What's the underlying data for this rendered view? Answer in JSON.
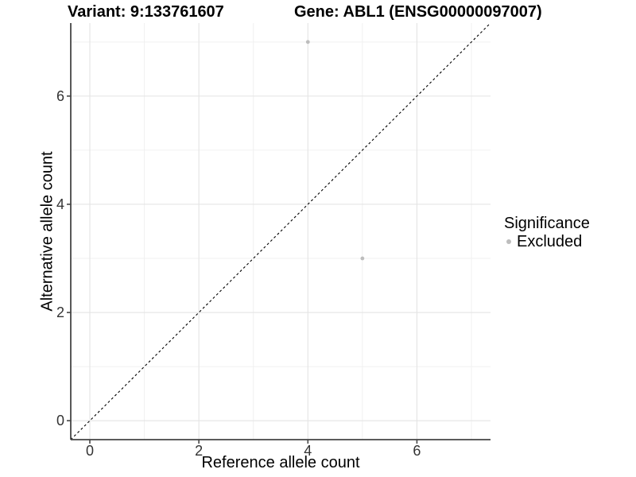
{
  "chart_data": {
    "type": "scatter",
    "title_left": "Variant: 9:133761607",
    "title_right": "Gene: ABL1 (ENSG00000097007)",
    "xlabel": "Reference allele count",
    "ylabel": "Alternative allele count",
    "xlim": [
      -0.35,
      7.35
    ],
    "ylim": [
      -0.35,
      7.35
    ],
    "x_major_ticks": [
      0,
      2,
      4,
      6
    ],
    "x_minor_ticks": [
      1,
      3,
      5,
      7
    ],
    "y_major_ticks": [
      0,
      2,
      4,
      6
    ],
    "y_minor_ticks": [
      1,
      3,
      5,
      7
    ],
    "grid": "major+minor",
    "legend_position": "right",
    "series": [
      {
        "name": "Excluded",
        "color": "#bdbdbd",
        "points": [
          {
            "x": 4,
            "y": 7
          },
          {
            "x": 5,
            "y": 3
          }
        ]
      }
    ],
    "reference_line": {
      "style": "dashed",
      "color": "#000000",
      "x1": -0.35,
      "y1": -0.35,
      "x2": 7.35,
      "y2": 7.35
    },
    "legend": {
      "title": "Significance",
      "items": [
        {
          "label": "Excluded",
          "color": "#bdbdbd"
        }
      ]
    },
    "colors": {
      "background": "#ffffff",
      "grid_major": "#e4e4e4",
      "grid_minor": "#f0f0f0",
      "axis_line": "#454545",
      "tick_label": "#333333"
    }
  }
}
